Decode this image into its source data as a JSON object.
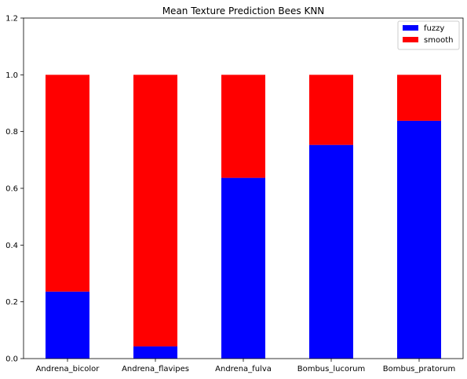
{
  "chart_data": {
    "type": "bar",
    "stacked": true,
    "title": "Mean Texture Prediction Bees KNN",
    "xlabel": "",
    "ylabel": "",
    "categories": [
      "Andrena_bicolor",
      "Andrena_flavipes",
      "Andrena_fulva",
      "Bombus_lucorum",
      "Bombus_pratorum"
    ],
    "series": [
      {
        "name": "fuzzy",
        "color": "#0000ff",
        "values": [
          0.236,
          0.043,
          0.637,
          0.753,
          0.838
        ]
      },
      {
        "name": "smooth",
        "color": "#ff0000",
        "values": [
          0.764,
          0.957,
          0.363,
          0.247,
          0.162
        ]
      }
    ],
    "ylim": [
      0,
      1.2
    ],
    "yticks": [
      "0.0",
      "0.2",
      "0.4",
      "0.6",
      "0.8",
      "1.0",
      "1.2"
    ],
    "ytick_values": [
      0,
      0.2,
      0.4,
      0.6,
      0.8,
      1.0,
      1.2
    ],
    "grid": false,
    "legend_position": "top-right"
  }
}
